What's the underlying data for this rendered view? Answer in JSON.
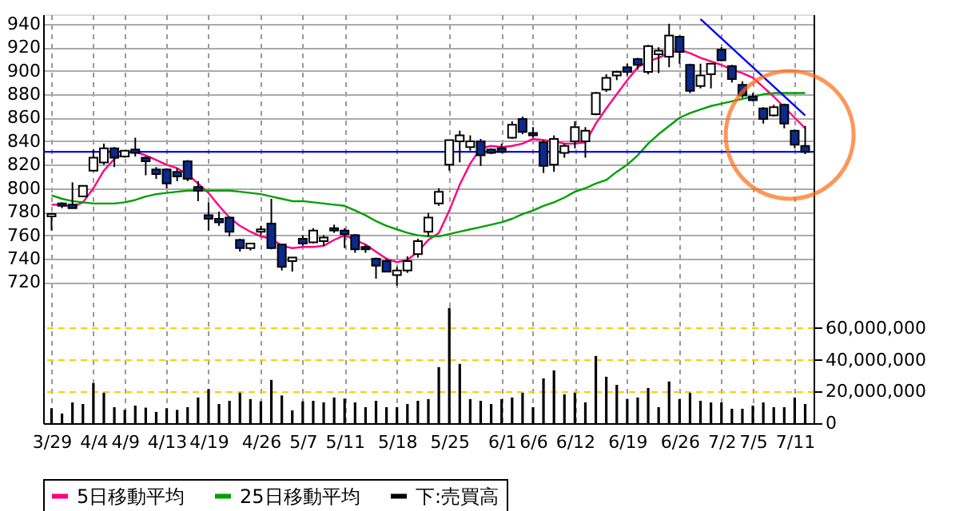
{
  "chart_data": {
    "type": "candlestick",
    "categories": [
      "3/29",
      null,
      null,
      null,
      "4/4",
      null,
      null,
      "4/9",
      null,
      null,
      null,
      "4/13",
      null,
      null,
      null,
      "4/19",
      null,
      null,
      null,
      null,
      "4/26",
      null,
      null,
      null,
      "5/7",
      null,
      null,
      null,
      "5/11",
      null,
      null,
      null,
      null,
      "5/18",
      null,
      null,
      null,
      null,
      "5/25",
      null,
      null,
      null,
      null,
      "6/1",
      null,
      null,
      "6/6",
      null,
      null,
      null,
      "6/12",
      null,
      null,
      null,
      null,
      "6/19",
      null,
      null,
      null,
      null,
      "6/26",
      null,
      null,
      null,
      "7/2",
      null,
      null,
      "7/5",
      null,
      null,
      null,
      "7/11",
      null
    ],
    "ohlc": [
      [
        776,
        779,
        764,
        778
      ],
      [
        787,
        788,
        783,
        785
      ],
      [
        786,
        805,
        783,
        783
      ],
      [
        793,
        802,
        793,
        802
      ],
      [
        815,
        833,
        815,
        826
      ],
      [
        822,
        838,
        820,
        834
      ],
      [
        834,
        835,
        818,
        826
      ],
      [
        827,
        832,
        826,
        832
      ],
      [
        833,
        843,
        827,
        830
      ],
      [
        826,
        827,
        811,
        823
      ],
      [
        816,
        818,
        808,
        812
      ],
      [
        816,
        817,
        800,
        804
      ],
      [
        814,
        817,
        806,
        810
      ],
      [
        823,
        824,
        806,
        808
      ],
      [
        801,
        806,
        789,
        798
      ],
      [
        777,
        788,
        764,
        774
      ],
      [
        774,
        780,
        768,
        771
      ],
      [
        775,
        776,
        759,
        763
      ],
      [
        756,
        757,
        746,
        749
      ],
      [
        749,
        753,
        747,
        753
      ],
      [
        763,
        768,
        760,
        765
      ],
      [
        770,
        791,
        748,
        749
      ],
      [
        752,
        752,
        730,
        733
      ],
      [
        738,
        741,
        729,
        741
      ],
      [
        757,
        760,
        751,
        753
      ],
      [
        754,
        766,
        753,
        764
      ],
      [
        755,
        760,
        751,
        758
      ],
      [
        766,
        769,
        762,
        764
      ],
      [
        764,
        766,
        749,
        761
      ],
      [
        760,
        761,
        745,
        748
      ],
      [
        750,
        752,
        745,
        748
      ],
      [
        740,
        741,
        723,
        734
      ],
      [
        738,
        740,
        729,
        729
      ],
      [
        726,
        733,
        717,
        730
      ],
      [
        730,
        742,
        728,
        738
      ],
      [
        744,
        757,
        741,
        755
      ],
      [
        763,
        779,
        759,
        775
      ],
      [
        787,
        800,
        785,
        797
      ],
      [
        820,
        841,
        815,
        841
      ],
      [
        840,
        849,
        822,
        845
      ],
      [
        835,
        845,
        832,
        840
      ],
      [
        840,
        842,
        819,
        828
      ],
      [
        833,
        834,
        829,
        830
      ],
      [
        834,
        838,
        830,
        831
      ],
      [
        843,
        857,
        842,
        854
      ],
      [
        859,
        861,
        846,
        848
      ],
      [
        847,
        852,
        843,
        845
      ],
      [
        839,
        841,
        813,
        819
      ],
      [
        820,
        845,
        814,
        842
      ],
      [
        830,
        838,
        826,
        836
      ],
      [
        840,
        857,
        834,
        852
      ],
      [
        840,
        852,
        826,
        849
      ],
      [
        863,
        882,
        862,
        881
      ],
      [
        884,
        897,
        882,
        894
      ],
      [
        896,
        900,
        892,
        899
      ],
      [
        903,
        906,
        896,
        899
      ],
      [
        910,
        911,
        901,
        905
      ],
      [
        899,
        922,
        897,
        921
      ],
      [
        914,
        920,
        898,
        917
      ],
      [
        912,
        940,
        903,
        930
      ],
      [
        929,
        930,
        906,
        916
      ],
      [
        905,
        906,
        881,
        883
      ],
      [
        887,
        906,
        885,
        896
      ],
      [
        897,
        906,
        885,
        906
      ],
      [
        918,
        920,
        908,
        909
      ],
      [
        904,
        905,
        890,
        893
      ],
      [
        888,
        891,
        877,
        879
      ],
      [
        878,
        881,
        874,
        875
      ],
      [
        868,
        869,
        855,
        859
      ],
      [
        862,
        871,
        861,
        869
      ],
      [
        871,
        872,
        851,
        855
      ],
      [
        849,
        850,
        834,
        837
      ],
      [
        836,
        853,
        829,
        831
      ]
    ],
    "series": [
      {
        "name": "5日移動平均",
        "type": "line",
        "color": "#ff0080",
        "values": [
          786,
          786,
          784,
          788,
          800,
          815,
          825,
          830,
          831,
          828,
          824,
          820,
          817,
          812,
          804,
          796,
          785,
          775,
          768,
          763,
          759,
          757,
          751,
          749,
          750,
          750,
          751,
          756,
          760,
          756,
          752,
          746,
          740,
          737,
          739,
          746,
          756,
          762,
          781,
          803,
          821,
          834,
          836,
          835,
          836,
          838,
          842,
          841,
          840,
          838,
          838,
          839,
          855,
          868,
          880,
          892,
          903,
          908,
          911,
          915,
          918,
          915,
          911,
          908,
          905,
          901,
          898,
          894,
          886,
          878,
          869,
          860,
          851
        ]
      },
      {
        "name": "25日移動平均",
        "type": "line",
        "color": "#00a000",
        "values": [
          794,
          791,
          789,
          788,
          787,
          787,
          787,
          788,
          790,
          793,
          795,
          796,
          797,
          798,
          798,
          798,
          798,
          798,
          797,
          796,
          795,
          793,
          791,
          789,
          789,
          788,
          787,
          786,
          785,
          781,
          777,
          772,
          768,
          765,
          762,
          760,
          759,
          759,
          761,
          763,
          765,
          767,
          769,
          771,
          774,
          778,
          781,
          785,
          788,
          792,
          797,
          800,
          804,
          807,
          814,
          820,
          828,
          838,
          846,
          853,
          860,
          864,
          867,
          870,
          872,
          874,
          876,
          878,
          880,
          881,
          881,
          881,
          881
        ]
      },
      {
        "type": "line",
        "color": "#0000ff",
        "values": [
          null,
          null,
          null,
          null,
          null,
          null,
          null,
          null,
          null,
          null,
          null,
          null,
          null,
          null,
          null,
          null,
          null,
          null,
          null,
          null,
          null,
          null,
          null,
          null,
          null,
          null,
          null,
          null,
          null,
          null,
          null,
          null,
          null,
          null,
          null,
          null,
          null,
          null,
          null,
          null,
          null,
          null,
          null,
          null,
          null,
          null,
          null,
          null,
          null,
          null,
          null,
          null,
          null,
          null,
          null,
          null,
          null,
          null,
          null,
          null,
          null,
          null,
          944,
          null,
          null,
          null,
          null,
          null,
          null,
          null,
          null,
          null,
          862
        ]
      },
      {
        "name": "下:売買高",
        "type": "bar",
        "axis": "y2",
        "color": "#000000",
        "values": [
          9400000,
          6100000,
          13100000,
          12100000,
          25300000,
          19200000,
          10100000,
          8400000,
          11100000,
          9800000,
          7100000,
          9400000,
          8400000,
          10100000,
          16200000,
          21500000,
          12100000,
          14100000,
          19200000,
          15200000,
          13800000,
          27300000,
          17500000,
          8100000,
          13800000,
          14100000,
          13100000,
          16200000,
          15500000,
          13100000,
          10100000,
          14100000,
          10100000,
          10100000,
          12100000,
          14100000,
          15200000,
          35400000,
          72700000,
          37400000,
          15200000,
          14100000,
          12100000,
          15200000,
          16200000,
          19200000,
          10100000,
          28300000,
          33300000,
          18200000,
          19200000,
          13100000,
          42400000,
          29300000,
          24200000,
          15200000,
          16200000,
          22200000,
          10100000,
          26300000,
          15200000,
          19200000,
          14100000,
          13100000,
          13100000,
          9100000,
          9100000,
          11100000,
          13100000,
          10100000,
          10100000,
          16200000,
          12100000
        ]
      }
    ],
    "ylim": [
      600,
      948
    ],
    "yticks": [
      720,
      740,
      760,
      780,
      800,
      820,
      840,
      860,
      880,
      900,
      920,
      940
    ],
    "y2lim": [
      0,
      258000000
    ],
    "y2ticks": [
      0,
      {
        "value": 20000000,
        "label": "20,000,000"
      },
      {
        "value": 40000000,
        "label": "40,000,000"
      },
      {
        "value": 60000000,
        "label": "60,000,000"
      }
    ],
    "ref_lines": [
      {
        "axis": "y",
        "value": 831,
        "color": "#0000ff"
      }
    ],
    "grid": true,
    "legend": "bottom"
  }
}
